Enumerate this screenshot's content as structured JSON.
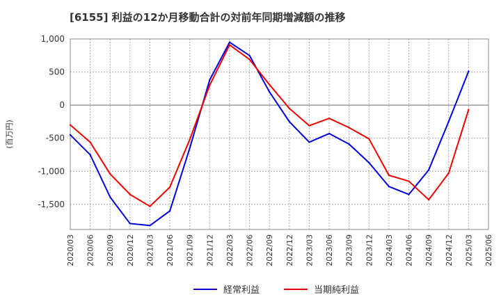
{
  "title": "[6155]  利益の12か月移動合計の対前年同期増減額の推移",
  "chart_data": {
    "type": "line",
    "title": "[6155]  利益の12か月移動合計の対前年同期増減額の推移",
    "xlabel": "",
    "ylabel": "(百万円)",
    "ylim": [
      -1880,
      1000
    ],
    "yticks": [
      1000,
      500,
      0,
      -500,
      -1000,
      -1500
    ],
    "ytick_labels": [
      "1,000",
      "500",
      "0",
      "-500",
      "-1,000",
      "-1,500"
    ],
    "categories": [
      "2020/03",
      "2020/06",
      "2020/09",
      "2020/12",
      "2021/03",
      "2021/06",
      "2021/09",
      "2021/12",
      "2022/03",
      "2022/06",
      "2022/09",
      "2022/12",
      "2023/03",
      "2023/06",
      "2023/09",
      "2023/12",
      "2024/03",
      "2024/06",
      "2024/09",
      "2024/12",
      "2025/03",
      "2025/06"
    ],
    "grid": true,
    "legend_position": "bottom",
    "series": [
      {
        "name": "経常利益",
        "color": "#0000dd",
        "values": [
          -450,
          -750,
          -1390,
          -1790,
          -1820,
          -1600,
          -650,
          380,
          950,
          750,
          200,
          -250,
          -560,
          -430,
          -590,
          -870,
          -1230,
          -1350,
          -980,
          -250,
          510,
          null
        ]
      },
      {
        "name": "当期純利益",
        "color": "#ee0000",
        "values": [
          -300,
          -560,
          -1040,
          -1350,
          -1530,
          -1240,
          -520,
          300,
          910,
          690,
          310,
          -50,
          -310,
          -200,
          -340,
          -510,
          -1060,
          -1150,
          -1430,
          -1030,
          -70,
          null
        ]
      }
    ]
  }
}
